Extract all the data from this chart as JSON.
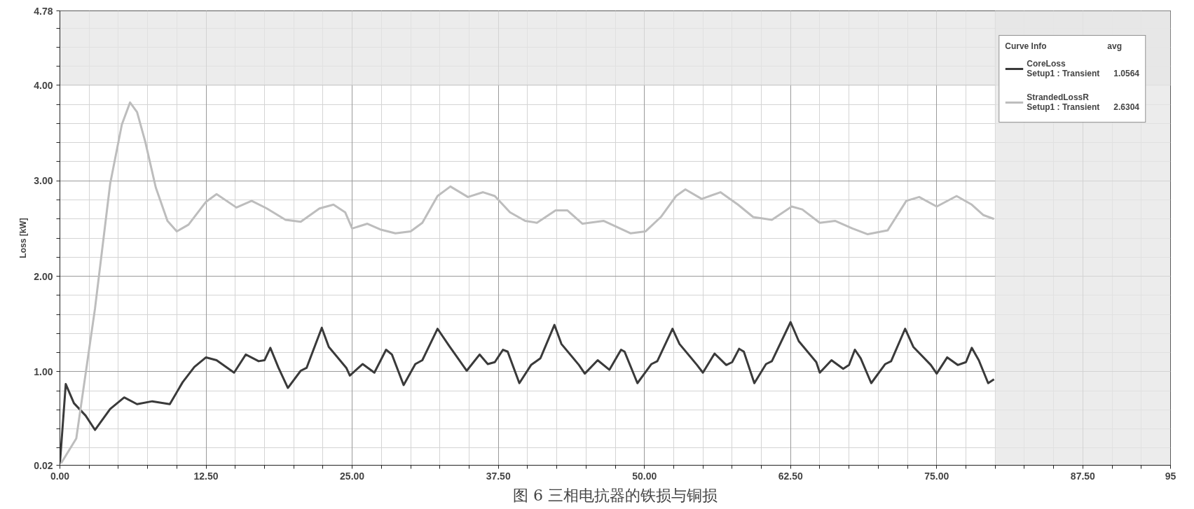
{
  "chart_data": {
    "type": "line",
    "title": "图 6 三相电抗器的铁损与铜损",
    "ylabel": "Loss [kW]",
    "legend_title": "Curve Info",
    "legend": "top right",
    "grid": true,
    "annotations": [
      "avg",
      "Setup1 : Transient",
      "1.0564",
      "Setup1 : Transient",
      "2.6304"
    ],
    "xlim": [
      0,
      95
    ],
    "ylim": [
      0.02,
      4.78
    ],
    "xticks": [
      {
        "value": 0,
        "label": "0.00"
      },
      {
        "value": 2.5,
        "label": null
      },
      {
        "value": 5,
        "label": null
      },
      {
        "value": 7.5,
        "label": null
      },
      {
        "value": 10,
        "label": null
      },
      {
        "value": 12.5,
        "label": "12.50"
      },
      {
        "value": 15,
        "label": null
      },
      {
        "value": 17.5,
        "label": null
      },
      {
        "value": 20,
        "label": null
      },
      {
        "value": 22.5,
        "label": null
      },
      {
        "value": 25,
        "label": "25.00"
      },
      {
        "value": 27.5,
        "label": null
      },
      {
        "value": 30,
        "label": null
      },
      {
        "value": 32.5,
        "label": null
      },
      {
        "value": 35,
        "label": null
      },
      {
        "value": 37.5,
        "label": "37.50"
      },
      {
        "value": 40,
        "label": null
      },
      {
        "value": 42.5,
        "label": null
      },
      {
        "value": 45,
        "label": null
      },
      {
        "value": 47.5,
        "label": null
      },
      {
        "value": 50,
        "label": "50.00"
      },
      {
        "value": 52.5,
        "label": null
      },
      {
        "value": 55,
        "label": null
      },
      {
        "value": 57.5,
        "label": null
      },
      {
        "value": 60,
        "label": null
      },
      {
        "value": 62.5,
        "label": "62.50"
      },
      {
        "value": 65,
        "label": null
      },
      {
        "value": 67.5,
        "label": null
      },
      {
        "value": 70,
        "label": null
      },
      {
        "value": 72.5,
        "label": null
      },
      {
        "value": 75,
        "label": "75.00"
      },
      {
        "value": 77.5,
        "label": null
      },
      {
        "value": 80,
        "label": null
      },
      {
        "value": 82.5,
        "label": null
      },
      {
        "value": 85,
        "label": null
      },
      {
        "value": 87.5,
        "label": "87.50"
      },
      {
        "value": 90,
        "label": null
      },
      {
        "value": 92.5,
        "label": null
      },
      95
    ],
    "yticks": [
      {
        "value": 0.02,
        "label": "0.02"
      },
      {
        "value": 0.2,
        "label": null
      },
      {
        "value": 0.4,
        "label": null
      },
      {
        "value": 0.6,
        "label": null
      },
      {
        "value": 0.8,
        "label": null
      },
      {
        "value": 1,
        "label": "1.00"
      },
      {
        "value": 1.2,
        "label": null
      },
      {
        "value": 1.4,
        "label": null
      },
      {
        "value": 1.6,
        "label": null
      },
      {
        "value": 1.8,
        "label": null
      },
      {
        "value": 2,
        "label": "2.00"
      },
      {
        "value": 2.2,
        "label": null
      },
      {
        "value": 2.4,
        "label": null
      },
      {
        "value": 2.6,
        "label": null
      },
      {
        "value": 2.8,
        "label": null
      },
      {
        "value": 3,
        "label": "3.00"
      },
      {
        "value": 3.2,
        "label": null
      },
      {
        "value": 3.4,
        "label": null
      },
      {
        "value": 3.6,
        "label": null
      },
      {
        "value": 3.8,
        "label": null
      },
      {
        "value": 4,
        "label": "4.00"
      },
      {
        "value": 4.2,
        "label": null
      },
      {
        "value": 4.4,
        "label": null
      },
      {
        "value": 4.6,
        "label": null
      },
      {
        "value": 4.78,
        "label": "4.78"
      }
    ],
    "bands": [
      {
        "axis": "y",
        "from": 4,
        "to": 4.78,
        "color": "#e6e6e6"
      },
      {
        "axis": "x",
        "from": 80,
        "to": 95,
        "color": "#e6e6e6"
      }
    ],
    "series": [
      {
        "name": "CoreLoss",
        "color": "#3a3a3a",
        "x": [
          0,
          0.5,
          1.2,
          2.2,
          3.0,
          4.3,
          5.5,
          6.6,
          7.9,
          9.4,
          10.5,
          11.5,
          12.5,
          13.4,
          14.9,
          15.9,
          17.0,
          17.5,
          18.0,
          18.7,
          19.5,
          20.6,
          21.1,
          22.4,
          23.0,
          24.5,
          24.8,
          25.9,
          26.9,
          27.9,
          28.4,
          29.4,
          30.4,
          31.0,
          32.3,
          33.3,
          34.8,
          35.9,
          36.6,
          37.2,
          37.9,
          38.3,
          39.3,
          40.3,
          41.1,
          42.3,
          42.9,
          44.4,
          44.9,
          46.0,
          47.0,
          48.0,
          48.3,
          49.4,
          50.6,
          51.1,
          52.4,
          53.0,
          54.5,
          55.0,
          56.0,
          57.0,
          57.5,
          58.1,
          58.5,
          59.4,
          60.4,
          60.9,
          62.5,
          63.2,
          64.7,
          65.0,
          66.0,
          67.0,
          67.5,
          68.0,
          68.5,
          69.4,
          70.6,
          71.1,
          72.3,
          73.0,
          74.5,
          75.0,
          75.9,
          76.8,
          77.5,
          78.0,
          78.6,
          79.4,
          79.9
        ],
        "values": [
          0.04,
          0.87,
          0.67,
          0.54,
          0.39,
          0.61,
          0.73,
          0.66,
          0.69,
          0.66,
          0.89,
          1.05,
          1.15,
          1.12,
          0.99,
          1.18,
          1.11,
          1.12,
          1.25,
          1.04,
          0.83,
          1.01,
          1.04,
          1.46,
          1.26,
          1.04,
          0.96,
          1.08,
          0.99,
          1.23,
          1.18,
          0.86,
          1.08,
          1.12,
          1.45,
          1.27,
          1.01,
          1.18,
          1.08,
          1.1,
          1.23,
          1.21,
          0.88,
          1.07,
          1.14,
          1.49,
          1.29,
          1.07,
          0.98,
          1.12,
          1.02,
          1.23,
          1.21,
          0.88,
          1.08,
          1.11,
          1.45,
          1.29,
          1.07,
          0.99,
          1.19,
          1.07,
          1.1,
          1.24,
          1.21,
          0.88,
          1.08,
          1.11,
          1.52,
          1.32,
          1.1,
          0.99,
          1.12,
          1.03,
          1.07,
          1.23,
          1.14,
          0.88,
          1.08,
          1.11,
          1.45,
          1.26,
          1.07,
          0.98,
          1.15,
          1.07,
          1.1,
          1.25,
          1.12,
          0.88,
          0.92
        ]
      },
      {
        "name": "StrandedLossR",
        "color": "#bdbdbd",
        "x": [
          0.1,
          1.4,
          3.0,
          4.3,
          5.3,
          6.0,
          6.6,
          7.3,
          8.2,
          9.2,
          10.0,
          11.0,
          12.5,
          13.4,
          15.1,
          16.4,
          17.7,
          19.3,
          20.6,
          22.2,
          23.4,
          24.4,
          25.0,
          26.3,
          27.4,
          28.7,
          30.0,
          31.0,
          32.3,
          33.4,
          34.9,
          36.2,
          37.2,
          38.5,
          39.8,
          40.8,
          42.4,
          43.4,
          44.7,
          46.5,
          48.8,
          50.1,
          51.4,
          52.7,
          53.5,
          54.9,
          56.5,
          58.0,
          59.3,
          60.9,
          62.6,
          63.5,
          65.0,
          66.3,
          67.8,
          69.1,
          70.8,
          72.4,
          73.5,
          75.0,
          76.7,
          78.0,
          79.0,
          79.9
        ],
        "values": [
          0.04,
          0.3,
          1.66,
          2.97,
          3.59,
          3.82,
          3.72,
          3.41,
          2.93,
          2.58,
          2.47,
          2.54,
          2.78,
          2.86,
          2.72,
          2.79,
          2.71,
          2.59,
          2.57,
          2.71,
          2.75,
          2.67,
          2.5,
          2.55,
          2.49,
          2.45,
          2.47,
          2.56,
          2.84,
          2.94,
          2.83,
          2.88,
          2.84,
          2.67,
          2.58,
          2.56,
          2.69,
          2.69,
          2.55,
          2.58,
          2.45,
          2.47,
          2.62,
          2.84,
          2.91,
          2.81,
          2.88,
          2.75,
          2.62,
          2.59,
          2.73,
          2.7,
          2.56,
          2.58,
          2.5,
          2.44,
          2.48,
          2.79,
          2.83,
          2.73,
          2.84,
          2.75,
          2.64,
          2.6
        ]
      }
    ]
  }
}
